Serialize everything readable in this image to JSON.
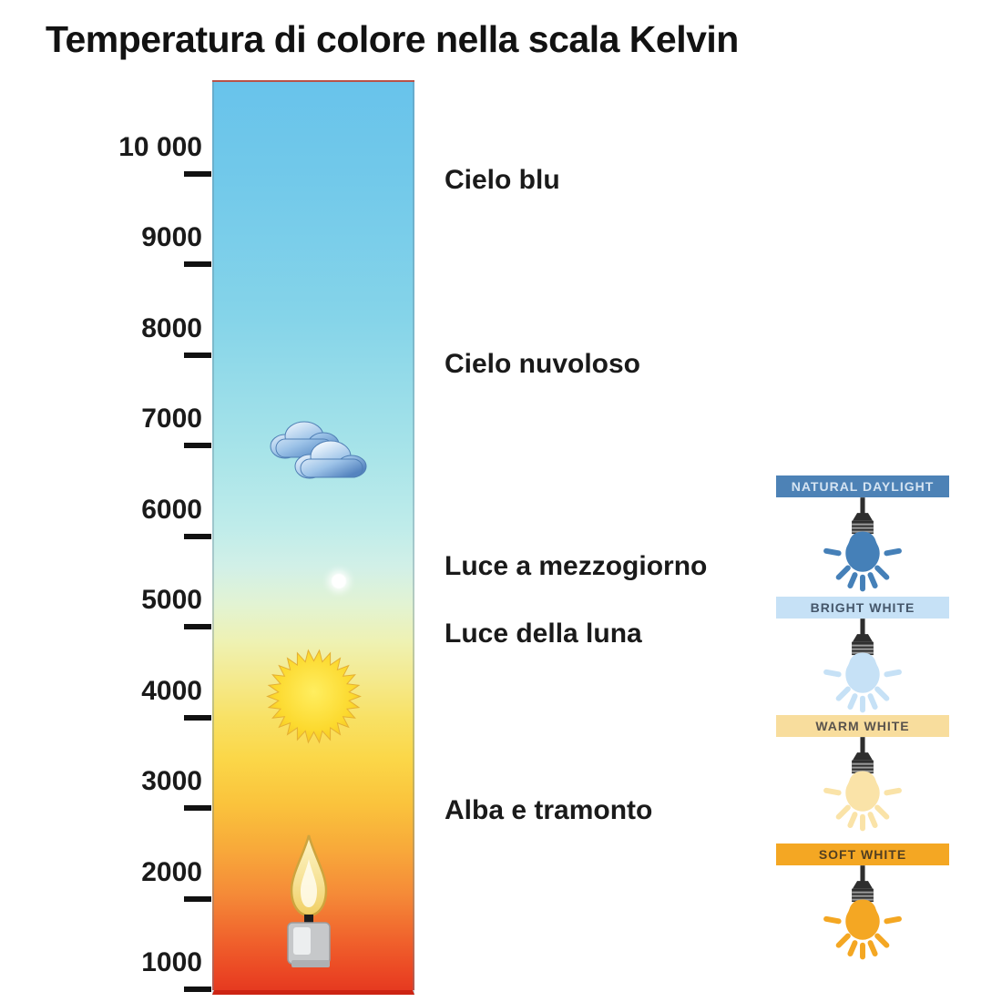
{
  "title": "Temperatura di colore nella scala Kelvin",
  "scale": {
    "unit_name": "Kelvin",
    "tick_labels": [
      "10 000",
      "9000",
      "8000",
      "7000",
      "6000",
      "5000",
      "4000",
      "3000",
      "2000",
      "1000"
    ]
  },
  "gradient_bar": {
    "stops": [
      "#68c3eb 0%",
      "#72c9ea 11%",
      "#85d4e9 26%",
      "#a8e4e9 41%",
      "#bfecea 49%",
      "#d2f0e7 53.5%",
      "#e2f3d3 57.5%",
      "#eef2b4 61.5%",
      "#f4ea90 65.5%",
      "#f8e165 70%",
      "#fbd748 74.5%",
      "#fac33c 79.5%",
      "#f8a93a 84.5%",
      "#f58a38 89.5%",
      "#f0622c 94.5%",
      "#ea4423 98.5%",
      "#e53a20 100%"
    ],
    "icons": [
      "cloudy-sky-icon",
      "moon-dot-icon",
      "sun-icon",
      "candle-icon"
    ]
  },
  "annotations": [
    {
      "label": "Cielo blu"
    },
    {
      "label": "Cielo nuvoloso"
    },
    {
      "label": "Luce a mezzogiorno"
    },
    {
      "label": "Luce della luna"
    },
    {
      "label": "Alba e tramonto"
    }
  ],
  "bulb_panels": [
    {
      "label": "NATURAL DAYLIGHT",
      "header_bg": "#4d82b6",
      "header_fg": "#d5e4f2",
      "bulb_color": "#4580b8"
    },
    {
      "label": "BRIGHT WHITE",
      "header_bg": "#c6e1f6",
      "header_fg": "#45566a",
      "bulb_color": "#c6e1f6"
    },
    {
      "label": "WARM WHITE",
      "header_bg": "#f8dd9d",
      "header_fg": "#59534d",
      "bulb_color": "#fae3a8"
    },
    {
      "label": "SOFT WHITE",
      "header_bg": "#f4a723",
      "header_fg": "#513e21",
      "bulb_color": "#f4a723"
    }
  ]
}
